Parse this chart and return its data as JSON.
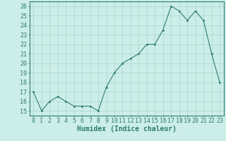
{
  "x": [
    0,
    1,
    2,
    3,
    4,
    5,
    6,
    7,
    8,
    9,
    10,
    11,
    12,
    13,
    14,
    15,
    16,
    17,
    18,
    19,
    20,
    21,
    22,
    23
  ],
  "y": [
    17,
    15,
    16,
    16.5,
    16,
    15.5,
    15.5,
    15.5,
    15,
    17.5,
    19,
    20,
    20.5,
    21,
    22,
    22,
    23.5,
    26,
    25.5,
    24.5,
    25.5,
    24.5,
    21,
    18
  ],
  "line_color": "#2e7d6e",
  "marker": ".",
  "marker_size": 3,
  "bg_color": "#cceee8",
  "grid_color": "#aad4cc",
  "xlabel": "Humidex (Indice chaleur)",
  "ylim": [
    14.5,
    26.5
  ],
  "xlim": [
    -0.5,
    23.5
  ],
  "yticks": [
    15,
    16,
    17,
    18,
    19,
    20,
    21,
    22,
    23,
    24,
    25,
    26
  ],
  "xtick_labels": [
    "0",
    "1",
    "2",
    "3",
    "4",
    "5",
    "6",
    "7",
    "8",
    "9",
    "10",
    "11",
    "12",
    "13",
    "14",
    "15",
    "16",
    "17",
    "18",
    "19",
    "20",
    "21",
    "22",
    "23"
  ],
  "axis_color": "#2e7d6e",
  "tick_color": "#2e7d6e",
  "label_color": "#2e7d6e",
  "font_size_xlabel": 7,
  "font_size_ticks": 6
}
